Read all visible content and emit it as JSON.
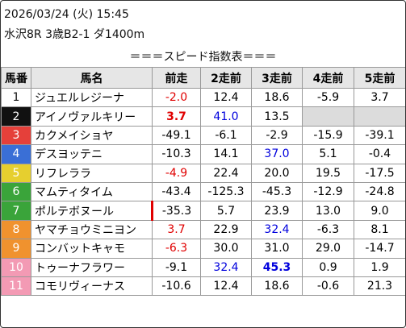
{
  "header": {
    "date": "2026/03/24 (火) 15:45",
    "race": "水沢8R 3歳B2-1 ダ1400m"
  },
  "title": "＝＝＝スピード指数表＝＝＝",
  "table": {
    "columns": [
      "馬番",
      "馬名",
      "前走",
      "2走前",
      "3走前",
      "4走前",
      "5走前"
    ],
    "rows": [
      [
        "1",
        "ジュエルレジーナ",
        "-2.0",
        "12.4",
        "18.6",
        "-5.9",
        "3.7"
      ],
      [
        "2",
        "アイノヴァルキリー",
        "3.7",
        "41.0",
        "13.5"
      ],
      [
        "3",
        "カクメイショヤ",
        "-49.1",
        "-6.1",
        "-2.9",
        "-15.9",
        "-39.1"
      ],
      [
        "4",
        "デスヨッテニ",
        "-10.3",
        "14.1",
        "37.0",
        "5.1",
        "-0.4"
      ],
      [
        "5",
        "リフレララ",
        "-4.9",
        "22.4",
        "20.0",
        "19.5",
        "-17.5"
      ],
      [
        "6",
        "マムティタイム",
        "-43.4",
        "-125.3",
        "-45.3",
        "-12.9",
        "-24.8"
      ],
      [
        "7",
        "ポルテボヌール",
        "-35.3",
        "5.7",
        "23.9",
        "13.0",
        "9.0"
      ],
      [
        "8",
        "ヤマチョウミニヨン",
        "3.7",
        "22.9",
        "32.4",
        "-6.3",
        "8.1"
      ],
      [
        "9",
        "コンバットキャモ",
        "-6.3",
        "30.0",
        "31.0",
        "29.0",
        "-14.7"
      ],
      [
        "10",
        "トゥーナフラワー",
        "-9.1",
        "32.4",
        "45.3",
        "0.9",
        "1.9"
      ],
      [
        "11",
        "コモリヴィーナス",
        "-10.6",
        "12.4",
        "18.6",
        "-0.6",
        "21.3"
      ]
    ]
  }
}
